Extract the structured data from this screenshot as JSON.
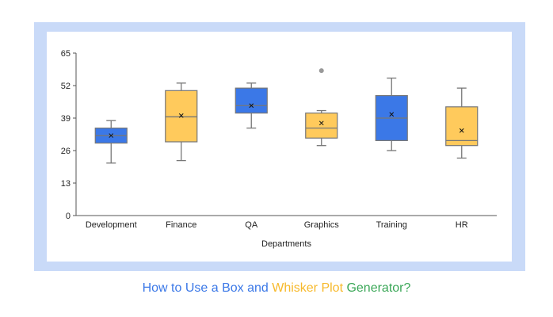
{
  "chart_data": {
    "type": "box",
    "title": "",
    "xlabel": "Departments",
    "ylabel": "",
    "ylim": [
      0,
      65
    ],
    "yticks": [
      "0",
      "13",
      "26",
      "39",
      "52",
      "65"
    ],
    "grid": false,
    "categories": [
      "Development",
      "Finance",
      "QA",
      "Graphics",
      "Training",
      "HR"
    ],
    "boxes": [
      {
        "min": 21,
        "q1": 29,
        "median": 32,
        "q3": 35,
        "max": 38,
        "mean": 32,
        "color": "#3b78e7"
      },
      {
        "min": 22,
        "q1": 29.5,
        "median": 39.5,
        "q3": 50,
        "max": 53,
        "mean": 40,
        "color": "#ffca5c"
      },
      {
        "min": 35,
        "q1": 41,
        "median": 44,
        "q3": 51,
        "max": 53,
        "mean": 44,
        "color": "#3b78e7"
      },
      {
        "min": 28,
        "q1": 31,
        "median": 35,
        "q3": 41,
        "max": 42,
        "mean": 37,
        "color": "#ffca5c",
        "outliers": [
          58
        ]
      },
      {
        "min": 26,
        "q1": 30,
        "median": 39,
        "q3": 48,
        "max": 55,
        "mean": 40.5,
        "color": "#3b78e7"
      },
      {
        "min": 23,
        "q1": 28,
        "median": 30,
        "q3": 43.5,
        "max": 51,
        "mean": 34,
        "color": "#ffca5c"
      }
    ]
  },
  "caption": {
    "part1": "How to Use a Box and ",
    "part2": "Whisker Plot",
    "part3": " Generator?",
    "color1": "#3b78e7",
    "color2": "#f7b92b",
    "color3": "#3aa757"
  }
}
